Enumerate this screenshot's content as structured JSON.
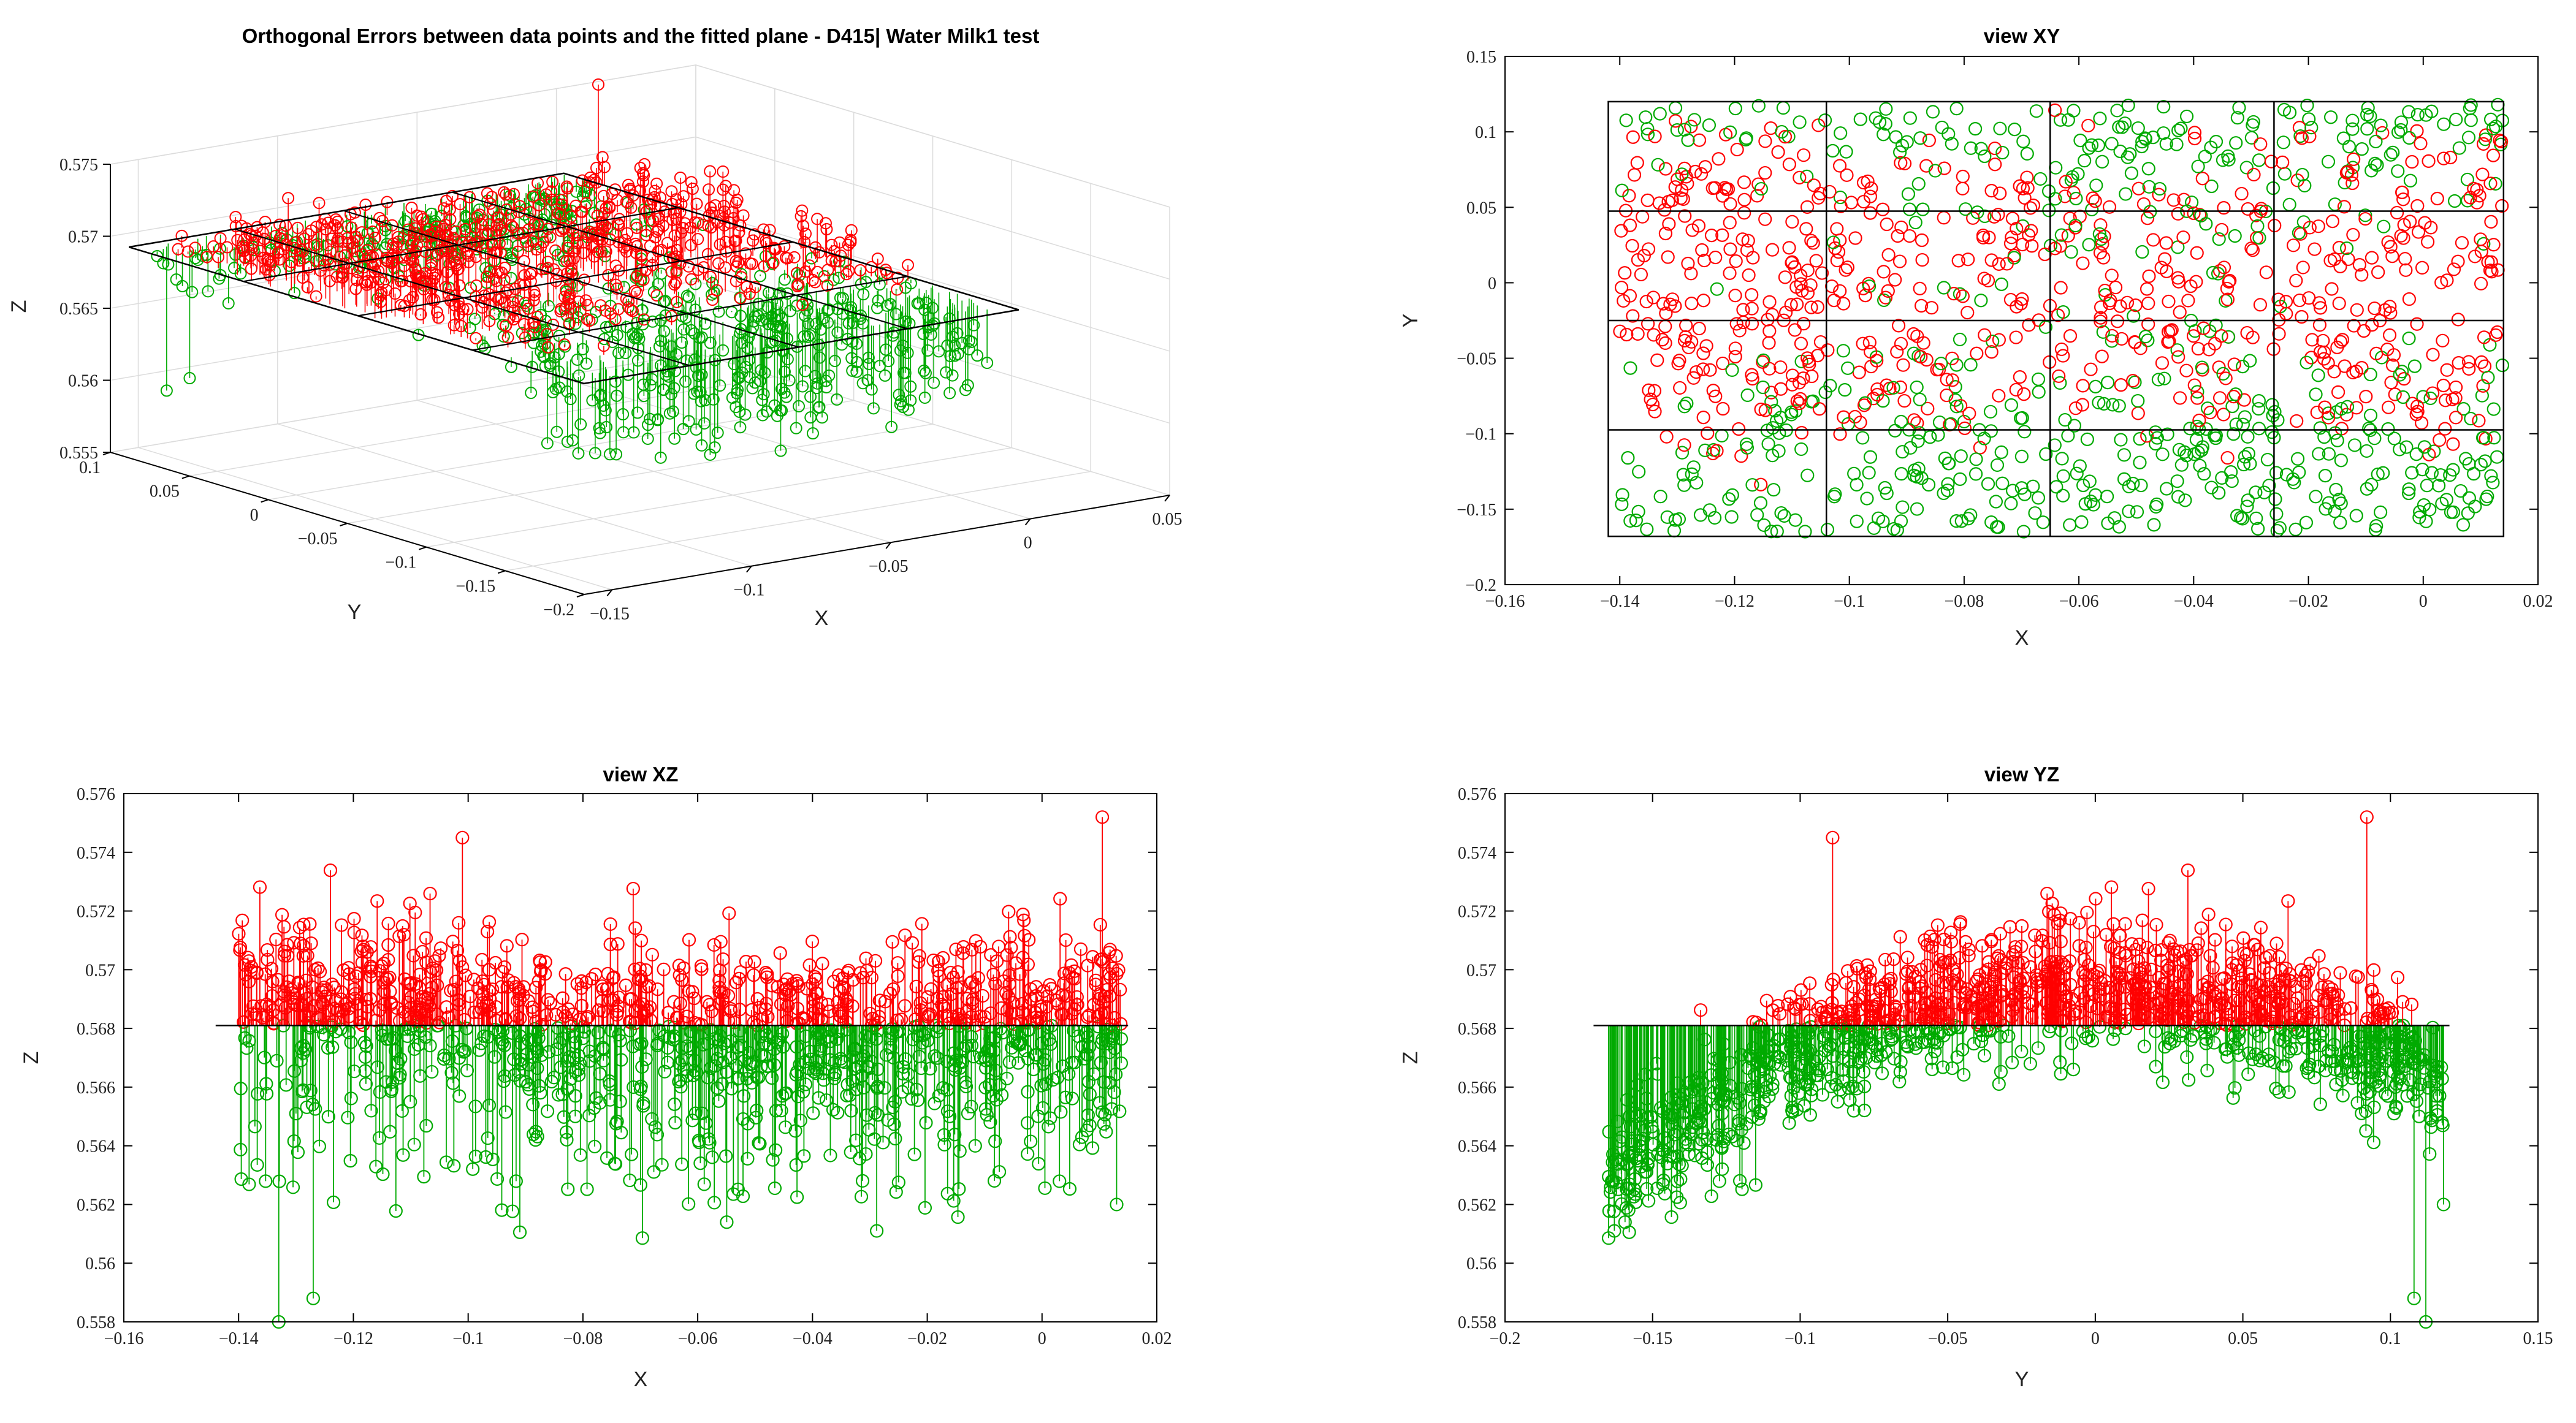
{
  "figure": {
    "name": "Orthogonal Errors figure",
    "colors": {
      "above": "#ff0000",
      "below": "#00aa00",
      "plane": "#000000",
      "grid": "#dcdcdc"
    }
  },
  "chart_data": [
    {
      "id": "view3d",
      "type": "scatter",
      "subtype": "3d-stem",
      "title": "Orthogonal Errors between data points and the fitted plane - D415| Water Milk1 test",
      "xlabel": "X",
      "ylabel": "Y",
      "zlabel": "Z",
      "xlim": [
        -0.16,
        0.05
      ],
      "ylim": [
        -0.2,
        0.1
      ],
      "zlim": [
        0.555,
        0.575
      ],
      "xticks": [
        -0.15,
        -0.1,
        -0.05,
        0,
        0.05
      ],
      "xticklabels": [
        "−0.15",
        "−0.1",
        "−0.05",
        "0",
        "0.05"
      ],
      "yticks": [
        0.1,
        0.05,
        0,
        -0.05,
        -0.1,
        -0.15,
        -0.2
      ],
      "yticklabels": [
        "0.1",
        "0.05",
        "0",
        "−0.05",
        "−0.1",
        "−0.15",
        "−0.2"
      ],
      "zticks": [
        0.555,
        0.56,
        0.565,
        0.57,
        0.575
      ],
      "zticklabels": [
        "0.555",
        "0.56",
        "0.565",
        "0.57",
        "0.575"
      ],
      "plane_z": 0.568,
      "plane_x": [
        -0.142,
        0.014
      ],
      "plane_y": [
        -0.168,
        0.12
      ]
    },
    {
      "id": "viewXY",
      "type": "scatter",
      "title": "view XY",
      "xlabel": "X",
      "ylabel": "Y",
      "xlim": [
        -0.16,
        0.02
      ],
      "ylim": [
        -0.2,
        0.15
      ],
      "xticks": [
        -0.16,
        -0.14,
        -0.12,
        -0.1,
        -0.08,
        -0.06,
        -0.04,
        -0.02,
        0,
        0.02
      ],
      "xticklabels": [
        "−0.16",
        "−0.14",
        "−0.12",
        "−0.1",
        "−0.08",
        "−0.06",
        "−0.04",
        "−0.02",
        "0",
        "0.02"
      ],
      "yticks": [
        -0.2,
        -0.15,
        -0.1,
        -0.05,
        0,
        0.05,
        0.1,
        0.15
      ],
      "yticklabels": [
        "−0.2",
        "−0.15",
        "−0.1",
        "−0.05",
        "0",
        "0.05",
        "0.1",
        "0.15"
      ],
      "plane_x": [
        -0.142,
        0.014
      ],
      "plane_y": [
        -0.168,
        0.12
      ],
      "grid_x": [
        -0.104,
        -0.065,
        -0.026
      ],
      "grid_y": [
        -0.0975,
        -0.025,
        0.0475
      ]
    },
    {
      "id": "viewXZ",
      "type": "scatter",
      "subtype": "stem",
      "title": "view XZ",
      "xlabel": "X",
      "ylabel": "Z",
      "xlim": [
        -0.16,
        0.02
      ],
      "ylim": [
        0.558,
        0.576
      ],
      "xticks": [
        -0.16,
        -0.14,
        -0.12,
        -0.1,
        -0.08,
        -0.06,
        -0.04,
        -0.02,
        0,
        0.02
      ],
      "xticklabels": [
        "−0.16",
        "−0.14",
        "−0.12",
        "−0.1",
        "−0.08",
        "−0.06",
        "−0.04",
        "−0.02",
        "0",
        "0.02"
      ],
      "yticks": [
        0.558,
        0.56,
        0.562,
        0.564,
        0.566,
        0.568,
        0.57,
        0.572,
        0.574,
        0.576
      ],
      "yticklabels": [
        "0.558",
        "0.56",
        "0.562",
        "0.564",
        "0.566",
        "0.568",
        "0.57",
        "0.572",
        "0.574",
        "0.576"
      ],
      "baseline": 0.5681,
      "baseline_range": [
        -0.144,
        0.015
      ]
    },
    {
      "id": "viewYZ",
      "type": "scatter",
      "subtype": "stem",
      "title": "view YZ",
      "xlabel": "Y",
      "ylabel": "Z",
      "xlim": [
        -0.2,
        0.15
      ],
      "ylim": [
        0.558,
        0.576
      ],
      "xticks": [
        -0.2,
        -0.15,
        -0.1,
        -0.05,
        0,
        0.05,
        0.1,
        0.15
      ],
      "xticklabels": [
        "−0.2",
        "−0.15",
        "−0.1",
        "−0.05",
        "0",
        "0.05",
        "0.1",
        "0.15"
      ],
      "yticks": [
        0.558,
        0.56,
        0.562,
        0.564,
        0.566,
        0.568,
        0.57,
        0.572,
        0.574,
        0.576
      ],
      "yticklabels": [
        "0.558",
        "0.56",
        "0.562",
        "0.564",
        "0.566",
        "0.568",
        "0.57",
        "0.572",
        "0.574",
        "0.576"
      ],
      "baseline": 0.5681,
      "baseline_range": [
        -0.17,
        0.12
      ]
    }
  ],
  "dataset": {
    "description_of_distribution": "approximately 1300 points; Z deviation from fitted plane; above plane shown red, below plane shown green",
    "point_count": 1300,
    "x_range": [
      -0.14,
      0.014
    ],
    "y_range": [
      -0.165,
      0.118
    ],
    "z_range": [
      0.558,
      0.5752
    ],
    "z_extremes": [
      {
        "x": -0.133,
        "y": 0.112,
        "z": 0.558
      },
      {
        "x": 0.0105,
        "y": 0.092,
        "z": 0.5752
      },
      {
        "x": -0.101,
        "y": -0.089,
        "z": 0.5745
      },
      {
        "x": -0.127,
        "y": 0.108,
        "z": 0.5588
      },
      {
        "x": 0.013,
        "y": 0.118,
        "z": 0.562
      }
    ]
  }
}
